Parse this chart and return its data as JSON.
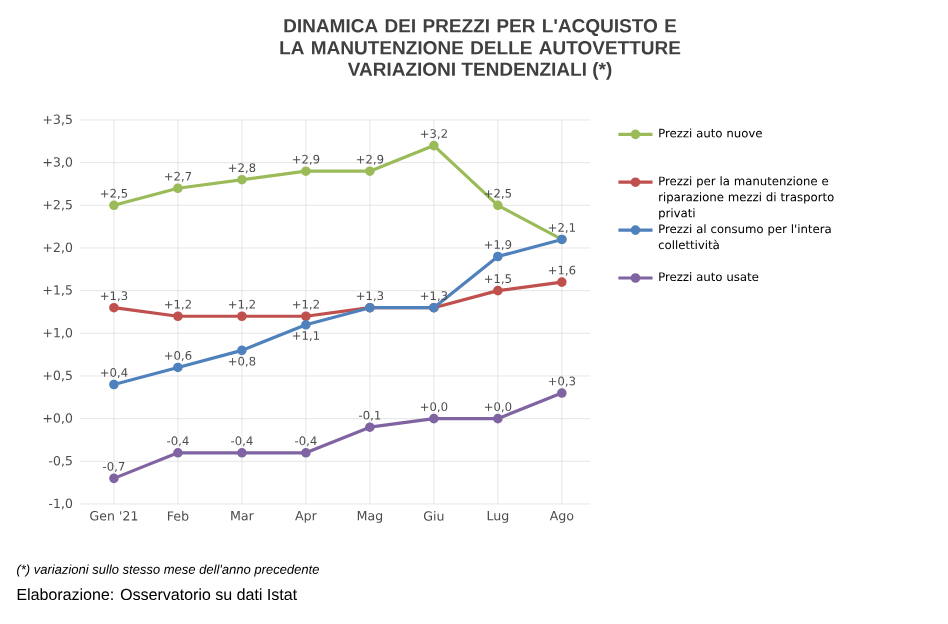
{
  "chart_data": {
    "type": "line",
    "title": "DINAMICA DEI PREZZI PER L'ACQUISTO E LA MANUTENZIONE DELLE AUTOVETTURE",
    "subtitle": "VARIAZIONI TENDENZIALI (*)",
    "categories": [
      "Gen '21",
      "Feb",
      "Mar",
      "Apr",
      "Mag",
      "Giu",
      "Lug",
      "Ago"
    ],
    "series": [
      {
        "name": "Prezzi auto nuove",
        "color": "#9bbb59",
        "values": [
          2.5,
          2.7,
          2.8,
          2.9,
          2.9,
          3.2,
          2.5,
          2.1
        ],
        "value_labels": [
          "+2,5",
          "+2,7",
          "+2,8",
          "+2,9",
          "+2,9",
          "+3,2",
          "+2,5",
          "+2,1"
        ]
      },
      {
        "name": "Prezzi per la manutenzione e riparazione mezzi di trasporto privati",
        "color": "#c0504d",
        "values": [
          1.3,
          1.2,
          1.2,
          1.2,
          1.3,
          1.3,
          1.5,
          1.6
        ],
        "value_labels": [
          "+1,3",
          "+1,2",
          "+1,2",
          "+1,2",
          "+1,3",
          "+1,3",
          "+1,5",
          "+1,6"
        ]
      },
      {
        "name": "Prezzi al consumo per l'intera collettività",
        "color": "#4f81bd",
        "values": [
          0.4,
          0.6,
          0.8,
          1.1,
          1.3,
          1.3,
          1.9,
          2.1
        ],
        "value_labels": [
          "+0,4",
          "+0,6",
          "+0,8",
          "+1,1",
          null,
          null,
          "+1,9",
          null
        ]
      },
      {
        "name": "Prezzi auto usate",
        "color": "#8064a2",
        "values": [
          -0.7,
          -0.4,
          -0.4,
          -0.4,
          -0.1,
          0.0,
          0.0,
          0.3
        ],
        "value_labels": [
          "-0,7",
          "-0,4",
          "-0,4",
          "-0,4",
          "-0,1",
          "+0,0",
          "+0,0",
          "+0,3"
        ]
      }
    ],
    "ylim": [
      -1.0,
      3.5
    ],
    "yticks": [
      {
        "value": -1.0,
        "label": "-1,0"
      },
      {
        "value": -0.5,
        "label": "-0,5"
      },
      {
        "value": 0.0,
        "label": "+0,0"
      },
      {
        "value": 0.5,
        "label": "+0,5"
      },
      {
        "value": 1.0,
        "label": "+1,0"
      },
      {
        "value": 1.5,
        "label": "+1,5"
      },
      {
        "value": 2.0,
        "label": "+2,0"
      },
      {
        "value": 2.5,
        "label": "+2,5"
      },
      {
        "value": 3.0,
        "label": "+3,0"
      },
      {
        "value": 3.5,
        "label": "+3,5"
      }
    ],
    "grid": true,
    "legend": "right",
    "marker": "circle",
    "line_style": "solid",
    "annotations": [
      "(*) variazioni sullo stesso mese dell'anno precedente",
      "Elaborazione: Osservatorio su dati Istat"
    ]
  }
}
